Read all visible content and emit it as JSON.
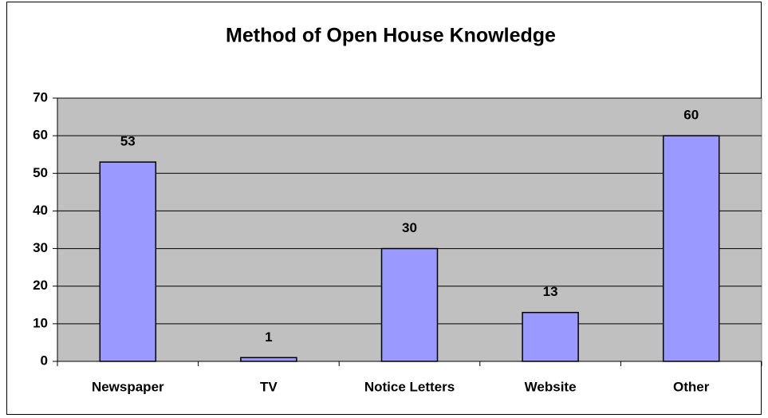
{
  "chart_data": {
    "type": "bar",
    "title": "Method of Open House Knowledge",
    "categories": [
      "Newspaper",
      "TV",
      "Notice Letters",
      "Website",
      "Other"
    ],
    "values": [
      53,
      1,
      30,
      13,
      60
    ],
    "color": "#9999ff",
    "plot_background": "#c0c0c0",
    "ylim": [
      0,
      70
    ],
    "yticks": [
      0,
      10,
      20,
      30,
      40,
      50,
      60,
      70
    ],
    "grid": true
  }
}
